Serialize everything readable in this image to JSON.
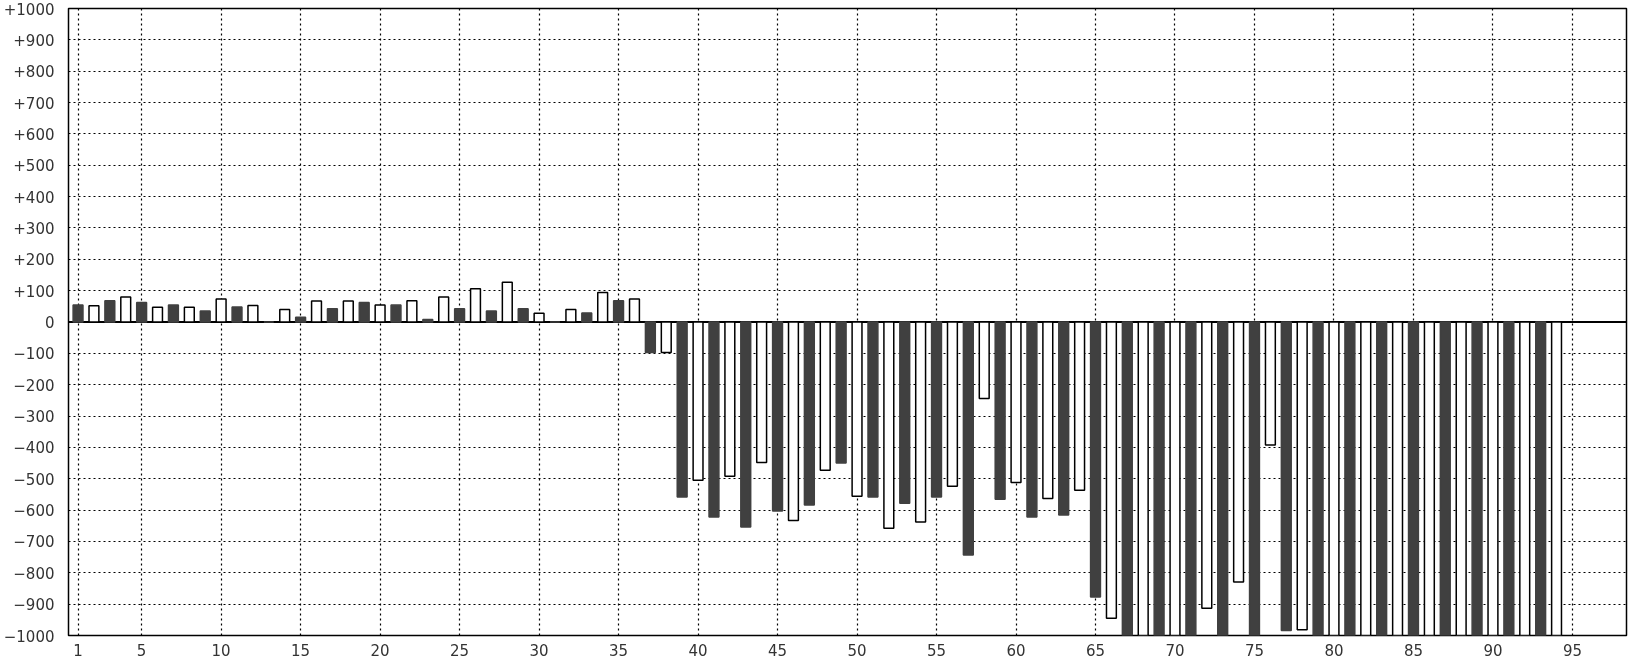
{
  "chart_data": {
    "type": "bar",
    "x": [
      1,
      2,
      3,
      4,
      5,
      6,
      7,
      8,
      9,
      10,
      11,
      12,
      13,
      14,
      15,
      16,
      17,
      18,
      19,
      20,
      21,
      22,
      23,
      24,
      25,
      26,
      27,
      28,
      29,
      30,
      31,
      32,
      33,
      34,
      35,
      36,
      37,
      38,
      39,
      40,
      41,
      42,
      43,
      44,
      45,
      46,
      47,
      48,
      49,
      50,
      51,
      52,
      53,
      54,
      55,
      56,
      57,
      58,
      59,
      60,
      61,
      62,
      63,
      64,
      65,
      66,
      67,
      68,
      69,
      70,
      71,
      72,
      73,
      74,
      75,
      76,
      77,
      78,
      79,
      80,
      81,
      82,
      83,
      84,
      85,
      86,
      87,
      88,
      89,
      90,
      91,
      92,
      93,
      94
    ],
    "values": [
      54,
      52,
      68,
      80,
      62,
      47,
      54,
      47,
      35,
      73,
      48,
      53,
      0,
      40,
      15,
      67,
      42,
      67,
      62,
      54,
      54,
      68,
      8,
      80,
      42,
      106,
      35,
      127,
      42,
      28,
      0,
      40,
      29,
      94,
      68,
      73,
      -97,
      -97,
      -558,
      -505,
      -622,
      -492,
      -654,
      -448,
      -603,
      -633,
      -584,
      -473,
      -450,
      -556,
      -558,
      -658,
      -578,
      -638,
      -558,
      -524,
      -743,
      -244,
      -565,
      -512,
      -622,
      -563,
      -616,
      -537,
      -877,
      -945,
      -1000,
      -1000,
      -1000,
      -1000,
      -1000,
      -913,
      -1000,
      -829,
      -1000,
      -392,
      -984,
      -982,
      -1000,
      -1000,
      -1000,
      -1000,
      -1000,
      -1000,
      -1000,
      -1000,
      -1000,
      -1000,
      -1000,
      -1000,
      -1000,
      -1000,
      -1000,
      -1000
    ],
    "colors": [
      "#404040",
      "#ffffff",
      "#404040",
      "#ffffff",
      "#404040",
      "#ffffff",
      "#404040",
      "#ffffff",
      "#404040",
      "#ffffff",
      "#404040",
      "#ffffff",
      "#404040",
      "#ffffff",
      "#404040",
      "#ffffff",
      "#404040",
      "#ffffff",
      "#404040",
      "#ffffff",
      "#404040",
      "#ffffff",
      "#404040",
      "#ffffff",
      "#404040",
      "#ffffff",
      "#404040",
      "#ffffff",
      "#404040",
      "#ffffff",
      "#404040",
      "#ffffff",
      "#404040",
      "#ffffff",
      "#404040",
      "#ffffff",
      "#404040",
      "#ffffff",
      "#404040",
      "#ffffff",
      "#404040",
      "#ffffff",
      "#404040",
      "#ffffff",
      "#404040",
      "#ffffff",
      "#404040",
      "#ffffff",
      "#404040",
      "#ffffff",
      "#404040",
      "#ffffff",
      "#404040",
      "#ffffff",
      "#404040",
      "#ffffff",
      "#404040",
      "#ffffff",
      "#404040",
      "#ffffff",
      "#404040",
      "#ffffff",
      "#404040",
      "#ffffff",
      "#404040",
      "#ffffff",
      "#404040",
      "#ffffff",
      "#404040",
      "#ffffff",
      "#404040",
      "#ffffff",
      "#404040",
      "#ffffff",
      "#404040",
      "#ffffff",
      "#404040",
      "#ffffff",
      "#404040",
      "#ffffff",
      "#404040",
      "#ffffff",
      "#404040",
      "#ffffff",
      "#404040",
      "#ffffff",
      "#404040",
      "#ffffff",
      "#404040",
      "#ffffff",
      "#404040",
      "#ffffff",
      "#404040",
      "#ffffff"
    ],
    "xlim": [
      0.4,
      98.4
    ],
    "xticks": [
      1,
      5,
      10,
      15,
      20,
      25,
      30,
      35,
      40,
      45,
      50,
      55,
      60,
      65,
      70,
      75,
      80,
      85,
      90,
      95
    ],
    "ylim": [
      -1000,
      1000
    ],
    "yticks": [
      {
        "value": 1000,
        "label": "+1000"
      },
      {
        "value": 900,
        "label": "+900"
      },
      {
        "value": 800,
        "label": "+800"
      },
      {
        "value": 700,
        "label": "+700"
      },
      {
        "value": 600,
        "label": "+600"
      },
      {
        "value": 500,
        "label": "+500"
      },
      {
        "value": 400,
        "label": "+400"
      },
      {
        "value": 300,
        "label": "+300"
      },
      {
        "value": 200,
        "label": "+200"
      },
      {
        "value": 100,
        "label": "+100"
      },
      0,
      {
        "value": -100,
        "label": "−100"
      },
      {
        "value": -200,
        "label": "−200"
      },
      {
        "value": -300,
        "label": "−300"
      },
      {
        "value": -400,
        "label": "−400"
      },
      {
        "value": -500,
        "label": "−500"
      },
      {
        "value": -600,
        "label": "−600"
      },
      {
        "value": -700,
        "label": "−700"
      },
      {
        "value": -800,
        "label": "−800"
      },
      {
        "value": -900,
        "label": "−900"
      },
      {
        "value": -1000,
        "label": "−1000"
      }
    ],
    "grid": true
  }
}
